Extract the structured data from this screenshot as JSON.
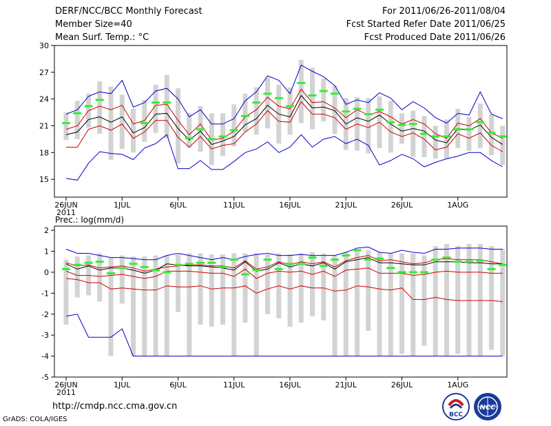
{
  "header": {
    "title": "DERF/NCC/BCC Monthly Forecast",
    "member_size": "Member Size=40",
    "variable": "Mean Surf. Temp.: °C",
    "period": "For 2011/06/26-2011/08/04",
    "refer_date": "Fcst Started Refer Date 2011/06/25",
    "produced_date": "Fcst Produced Date 2011/06/26"
  },
  "footer": {
    "url": "http://cmdp.ncc.cma.gov.cn",
    "grads": "GrADS: COLA/IGES",
    "logo1_text": "BCC",
    "logo2_text": "NCC"
  },
  "colors": {
    "max_min": "#0000cc",
    "pct": "#cc0000",
    "mean": "#000000",
    "box": "#d3d3d3",
    "obs": "#33ee33"
  },
  "chart_data": [
    {
      "type": "line",
      "title": "Mean Surf. Temp.: °C",
      "x_tick_labels": [
        "26JUN",
        "1JUL",
        "6JUL",
        "11JUL",
        "16JUL",
        "21JUL",
        "26JUL",
        "1AUG"
      ],
      "x_year_label": "2011",
      "y_ticks": [
        15,
        18,
        21,
        24,
        27,
        30
      ],
      "ylim": [
        13,
        30
      ],
      "days": 40,
      "series": [
        {
          "name": "max",
          "values": [
            22.3,
            22.8,
            24.3,
            24.8,
            24.6,
            26.1,
            23.1,
            23.6,
            24.9,
            25.2,
            24.0,
            22.0,
            22.8,
            21.2,
            21.2,
            21.8,
            23.8,
            24.8,
            26.6,
            26.1,
            24.6,
            27.8,
            27.1,
            26.5,
            25.5,
            23.4,
            23.9,
            23.6,
            24.7,
            24.1,
            22.8,
            23.7,
            23.0,
            21.9,
            21.3,
            22.4,
            22.2,
            24.8,
            22.3,
            21.8
          ]
        },
        {
          "name": "p90",
          "values": [
            20.6,
            21.0,
            22.7,
            23.2,
            22.8,
            23.3,
            21.2,
            21.6,
            23.3,
            23.4,
            21.6,
            20.0,
            21.2,
            19.4,
            19.6,
            20.4,
            22.0,
            22.8,
            24.2,
            23.2,
            22.9,
            25.1,
            23.6,
            23.7,
            23.0,
            21.9,
            22.8,
            22.2,
            22.6,
            22.0,
            21.2,
            21.7,
            21.2,
            20.1,
            19.6,
            21.3,
            21.0,
            21.8,
            20.2,
            19.6
          ]
        },
        {
          "name": "mean",
          "values": [
            20.0,
            20.3,
            21.7,
            22.0,
            21.4,
            22.0,
            20.2,
            20.8,
            22.3,
            22.4,
            20.7,
            19.4,
            20.4,
            18.9,
            19.3,
            19.8,
            21.1,
            21.8,
            23.3,
            22.3,
            22.0,
            24.4,
            23.0,
            23.1,
            22.7,
            21.2,
            21.9,
            21.5,
            22.2,
            21.2,
            20.4,
            20.7,
            20.4,
            19.4,
            19.1,
            20.7,
            20.5,
            21.1,
            19.7,
            18.9
          ]
        },
        {
          "name": "p10",
          "values": [
            18.6,
            18.6,
            20.6,
            21.0,
            20.5,
            21.2,
            19.6,
            20.3,
            21.6,
            21.6,
            19.7,
            18.6,
            19.8,
            18.4,
            18.8,
            19.0,
            20.3,
            21.2,
            22.7,
            21.5,
            21.4,
            23.7,
            22.3,
            22.3,
            21.9,
            20.6,
            21.2,
            20.8,
            21.4,
            20.3,
            19.8,
            20.2,
            19.5,
            18.3,
            18.6,
            20.1,
            19.6,
            20.2,
            18.8,
            18.1
          ]
        },
        {
          "name": "min",
          "values": [
            15.1,
            14.9,
            16.8,
            18.1,
            17.9,
            17.8,
            17.2,
            18.5,
            19.0,
            20.0,
            16.2,
            16.2,
            17.1,
            16.1,
            16.1,
            17.0,
            18.0,
            18.4,
            19.2,
            18.0,
            18.6,
            20.0,
            18.6,
            19.5,
            19.8,
            19.0,
            19.5,
            18.8,
            16.6,
            17.1,
            17.8,
            17.3,
            16.4,
            16.9,
            17.3,
            17.6,
            18.0,
            18.0,
            17.1,
            16.4
          ]
        },
        {
          "name": "obs",
          "values": [
            21.3,
            22.4,
            23.2,
            23.9,
            null,
            null,
            null,
            21.3,
            23.6,
            23.6,
            null,
            19.6,
            20.6,
            19.5,
            19.8,
            20.5,
            22.1,
            23.6,
            24.6,
            24.1,
            23.2,
            25.8,
            24.4,
            24.9,
            24.6,
            22.6,
            22.9,
            22.3,
            22.8,
            21.4,
            21.1,
            21.2,
            20.1,
            19.8,
            19.8,
            20.6,
            20.6,
            21.4,
            20.2,
            19.8
          ]
        },
        {
          "name": "box_top",
          "values": [
            22.5,
            23.8,
            24.6,
            26.0,
            25.4,
            24.5,
            22.9,
            23.9,
            25.6,
            26.7,
            25.2,
            22.4,
            23.2,
            22.4,
            22.4,
            23.4,
            24.6,
            25.3,
            26.4,
            25.6,
            25.3,
            28.4,
            27.5,
            26.3,
            25.5,
            24.1,
            24.2,
            24.1,
            24.3,
            23.8,
            22.4,
            22.7,
            22.1,
            21.0,
            21.7,
            22.9,
            22.0,
            23.5,
            22.3,
            21.0
          ]
        },
        {
          "name": "box_bottom",
          "values": [
            19.4,
            19.5,
            20.8,
            20.1,
            17.2,
            18.4,
            18.0,
            19.2,
            20.2,
            19.6,
            16.8,
            18.5,
            18.1,
            16.6,
            17.6,
            18.7,
            20.3,
            20.0,
            20.7,
            19.0,
            20.0,
            21.3,
            20.6,
            21.5,
            20.1,
            18.3,
            18.2,
            17.9,
            18.5,
            18.0,
            19.0,
            17.5,
            17.5,
            17.3,
            17.3,
            18.5,
            18.2,
            18.5,
            17.7,
            16.6
          ]
        }
      ]
    },
    {
      "type": "line",
      "title": "Prec.: log(mm/d)",
      "x_tick_labels": [
        "26JUN",
        "1JUL",
        "6JUL",
        "11JUL",
        "16JUL",
        "21JUL",
        "26JUL",
        "1AUG"
      ],
      "x_year_label": "2011",
      "y_ticks": [
        -5,
        -4,
        -3,
        -2,
        -1,
        0,
        1,
        2
      ],
      "ylim": [
        -5,
        2.2
      ],
      "days": 40,
      "series": [
        {
          "name": "max",
          "values": [
            1.1,
            0.9,
            0.9,
            0.8,
            0.7,
            0.7,
            0.65,
            0.6,
            0.6,
            0.8,
            0.9,
            0.8,
            0.7,
            0.6,
            0.7,
            0.6,
            0.75,
            0.85,
            0.9,
            0.8,
            0.8,
            0.85,
            0.8,
            0.8,
            0.8,
            0.95,
            1.15,
            1.2,
            0.95,
            0.9,
            1.05,
            0.95,
            0.9,
            1.1,
            1.1,
            1.15,
            1.15,
            1.15,
            1.1,
            1.1
          ]
        },
        {
          "name": "p90",
          "values": [
            0.45,
            0.3,
            0.35,
            0.2,
            0.25,
            0.3,
            0.2,
            0.05,
            0.15,
            0.25,
            0.3,
            0.35,
            0.35,
            0.3,
            0.3,
            0.2,
            0.55,
            0.15,
            0.25,
            0.5,
            0.35,
            0.5,
            0.4,
            0.5,
            0.25,
            0.55,
            0.7,
            0.8,
            0.55,
            0.6,
            0.5,
            0.4,
            0.45,
            0.6,
            0.65,
            0.6,
            0.6,
            0.6,
            0.5,
            0.4
          ]
        },
        {
          "name": "mean",
          "values": [
            0.4,
            0.15,
            0.3,
            0.1,
            0.2,
            0.2,
            0.1,
            -0.05,
            0.1,
            0.4,
            0.35,
            0.3,
            0.3,
            0.25,
            0.2,
            0.1,
            0.5,
            0.05,
            0.15,
            0.45,
            0.25,
            0.4,
            0.3,
            0.45,
            0.15,
            0.5,
            0.6,
            0.7,
            0.45,
            0.45,
            0.4,
            0.35,
            0.35,
            0.5,
            0.5,
            0.5,
            0.45,
            0.45,
            0.4,
            0.4
          ]
        },
        {
          "name": "p10",
          "values": [
            0.05,
            -0.15,
            -0.15,
            -0.2,
            -0.15,
            -0.1,
            -0.2,
            -0.3,
            -0.2,
            0.05,
            0.05,
            0.05,
            0.0,
            -0.05,
            -0.05,
            -0.2,
            0.15,
            -0.3,
            -0.05,
            0.05,
            0.0,
            0.05,
            -0.1,
            0.05,
            -0.2,
            0.1,
            0.15,
            0.2,
            -0.05,
            -0.05,
            -0.05,
            -0.15,
            -0.1,
            0.0,
            0.05,
            0.0,
            0.0,
            0.0,
            -0.05,
            -0.05
          ]
        },
        {
          "name": "p_low",
          "values": [
            -0.3,
            -0.35,
            -0.5,
            -0.5,
            -0.8,
            -0.75,
            -0.8,
            -0.85,
            -0.85,
            -0.65,
            -0.7,
            -0.7,
            -0.65,
            -0.8,
            -0.75,
            -0.75,
            -0.65,
            -1.0,
            -0.8,
            -0.65,
            -0.8,
            -0.65,
            -0.75,
            -0.75,
            -0.9,
            -0.85,
            -0.65,
            -0.7,
            -0.8,
            -0.85,
            -0.75,
            -1.3,
            -1.3,
            -1.2,
            -1.3,
            -1.35,
            -1.35,
            -1.35,
            -1.35,
            -1.4
          ]
        },
        {
          "name": "min",
          "values": [
            -2.1,
            -2.0,
            -3.1,
            -3.1,
            -3.1,
            -2.7,
            -4.0,
            -4.0,
            -4.0,
            -4.0,
            -4.0,
            -4.0,
            -4.0,
            -4.0,
            -4.0,
            -4.0,
            -4.0,
            -4.0,
            -4.0,
            -4.0,
            -4.0,
            -4.0,
            -4.0,
            -4.0,
            -4.0,
            -4.0,
            -4.0,
            -4.0,
            -4.0,
            -4.0,
            -4.0,
            -4.0,
            -4.0,
            -4.0,
            -4.0,
            -4.0,
            -4.0,
            -4.0,
            -4.0,
            -4.0
          ]
        },
        {
          "name": "obs",
          "values": [
            0.15,
            0.35,
            0.45,
            0.5,
            -0.05,
            0.2,
            0.4,
            0.25,
            0.1,
            0.0,
            0.35,
            0.4,
            0.45,
            0.45,
            0.25,
            0.6,
            -0.1,
            0.1,
            0.6,
            0.15,
            0.4,
            0.4,
            0.7,
            0.3,
            0.6,
            0.8,
            1.05,
            0.6,
            0.65,
            0.2,
            0.0,
            0.0,
            0.0,
            0.6,
            0.7,
            0.5,
            0.5,
            0.55,
            0.15,
            0.35
          ]
        },
        {
          "name": "box_top",
          "values": [
            0.6,
            0.75,
            0.8,
            0.9,
            0.7,
            0.8,
            0.75,
            0.75,
            0.8,
            0.8,
            0.85,
            0.9,
            0.9,
            0.85,
            0.85,
            0.9,
            0.9,
            0.9,
            0.85,
            0.9,
            0.85,
            0.9,
            0.95,
            0.9,
            0.8,
            0.95,
            1.0,
            1.05,
            0.95,
            0.9,
            0.9,
            0.9,
            0.8,
            1.25,
            1.35,
            1.25,
            1.35,
            1.35,
            1.25,
            1.1
          ]
        },
        {
          "name": "box_bottom",
          "values": [
            -2.5,
            -1.2,
            -1.1,
            -1.4,
            -4.0,
            -1.5,
            -4.0,
            -4.0,
            -4.0,
            -4.0,
            -1.9,
            -4.0,
            -2.5,
            -2.6,
            -2.5,
            -4.0,
            -2.4,
            -4.0,
            -2.0,
            -2.2,
            -2.6,
            -2.4,
            -2.1,
            -2.3,
            -4.0,
            -4.0,
            -4.0,
            -2.8,
            -4.0,
            -4.0,
            -3.9,
            -4.0,
            -3.5,
            -4.0,
            -4.0,
            -3.9,
            -4.0,
            -4.0,
            -3.7,
            -4.0
          ]
        }
      ]
    }
  ]
}
